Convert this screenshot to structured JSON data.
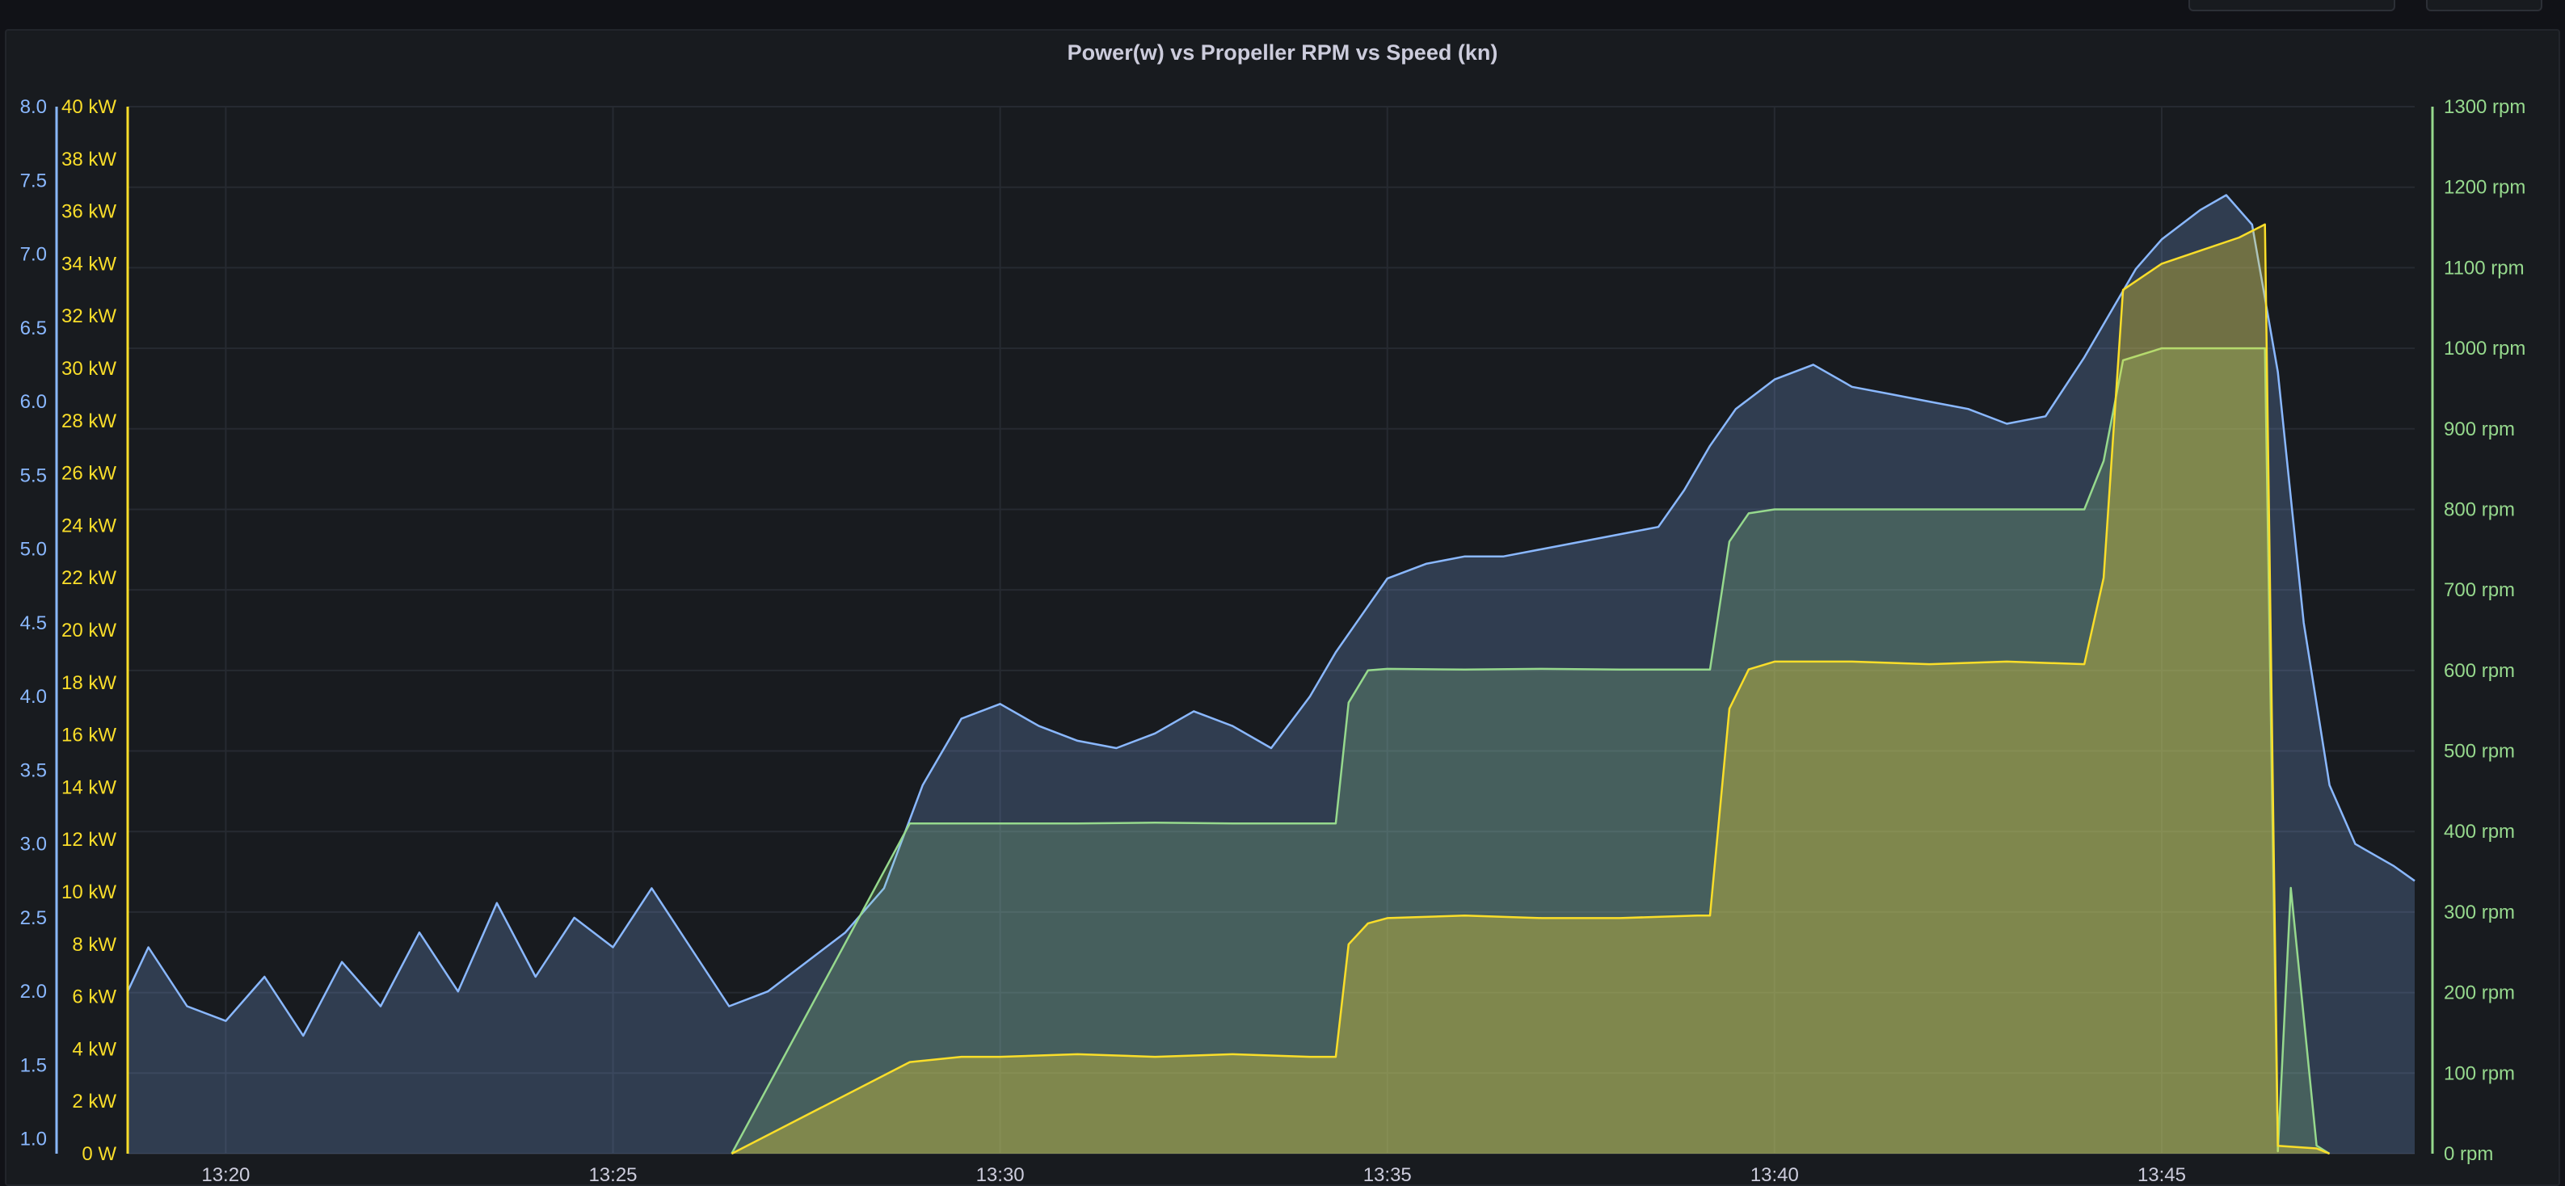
{
  "panel": {
    "title": "Power(w) vs Propeller RPM vs Speed (kn)"
  },
  "colors": {
    "speed": "#8ab8ff",
    "power": "#fade2a",
    "rpm": "#96d98d",
    "grid": "#262a31",
    "text": "#ccccdc"
  },
  "chart_data": {
    "type": "area",
    "title": "Power(w) vs Propeller RPM vs Speed (kn)",
    "x_unit": "time (HH:MM)",
    "x_ticks": [
      "13:20",
      "13:25",
      "13:30",
      "13:35",
      "13:40",
      "13:45"
    ],
    "xlim": [
      "13:18:44",
      "13:48:16"
    ],
    "axes": {
      "speed": {
        "side": "left-outer",
        "ylim": [
          0.9,
          8.0
        ],
        "ticks": [
          "1.0",
          "1.5",
          "2.0",
          "2.5",
          "3.0",
          "3.5",
          "4.0",
          "4.5",
          "5.0",
          "5.5",
          "6.0",
          "6.5",
          "7.0",
          "7.5",
          "8.0"
        ]
      },
      "power": {
        "side": "left-inner",
        "ylim": [
          0,
          40
        ],
        "unit": "kW",
        "ticks": [
          "0 W",
          "2 kW",
          "4 kW",
          "6 kW",
          "8 kW",
          "10 kW",
          "12 kW",
          "14 kW",
          "16 kW",
          "18 kW",
          "20 kW",
          "22 kW",
          "24 kW",
          "26 kW",
          "28 kW",
          "30 kW",
          "32 kW",
          "34 kW",
          "36 kW",
          "38 kW",
          "40 kW"
        ]
      },
      "rpm": {
        "side": "right",
        "ylim": [
          0,
          1300
        ],
        "unit": "rpm",
        "ticks": [
          "0 rpm",
          "100 rpm",
          "200 rpm",
          "300 rpm",
          "400 rpm",
          "500 rpm",
          "600 rpm",
          "700 rpm",
          "800 rpm",
          "900 rpm",
          "1000 rpm",
          "1100 rpm",
          "1200 rpm",
          "1300 rpm"
        ]
      }
    },
    "series": [
      {
        "axis": "speed",
        "x": [
          "13:18:44",
          "13:19:00",
          "13:19:30",
          "13:20:00",
          "13:20:30",
          "13:21:00",
          "13:21:30",
          "13:22:00",
          "13:22:30",
          "13:23:00",
          "13:23:30",
          "13:24:00",
          "13:24:30",
          "13:25:00",
          "13:25:30",
          "13:26:00",
          "13:26:30",
          "13:27:00",
          "13:27:30",
          "13:28:00",
          "13:28:30",
          "13:29:00",
          "13:29:30",
          "13:30:00",
          "13:30:30",
          "13:31:00",
          "13:31:30",
          "13:32:00",
          "13:32:30",
          "13:33:00",
          "13:33:30",
          "13:34:00",
          "13:34:20",
          "13:34:40",
          "13:35:00",
          "13:35:30",
          "13:36:00",
          "13:36:30",
          "13:37:00",
          "13:37:30",
          "13:38:00",
          "13:38:30",
          "13:38:50",
          "13:39:10",
          "13:39:30",
          "13:40:00",
          "13:40:30",
          "13:41:00",
          "13:41:30",
          "13:42:00",
          "13:42:30",
          "13:43:00",
          "13:43:30",
          "13:44:00",
          "13:44:20",
          "13:44:40",
          "13:45:00",
          "13:45:30",
          "13:45:50",
          "13:46:10",
          "13:46:30",
          "13:46:50",
          "13:47:10",
          "13:47:30",
          "13:48:00",
          "13:48:16"
        ],
        "values": [
          2.0,
          2.3,
          1.9,
          1.8,
          2.1,
          1.7,
          2.2,
          1.9,
          2.4,
          2.0,
          2.6,
          2.1,
          2.5,
          2.3,
          2.7,
          2.3,
          1.9,
          2.0,
          2.2,
          2.4,
          2.7,
          3.4,
          3.85,
          3.95,
          3.8,
          3.7,
          3.65,
          3.75,
          3.9,
          3.8,
          3.65,
          4.0,
          4.3,
          4.55,
          4.8,
          4.9,
          4.95,
          4.95,
          5.0,
          5.05,
          5.1,
          5.15,
          5.4,
          5.7,
          5.95,
          6.15,
          6.25,
          6.1,
          6.05,
          6.0,
          5.95,
          5.85,
          5.9,
          6.3,
          6.6,
          6.9,
          7.1,
          7.3,
          7.4,
          7.2,
          6.2,
          4.5,
          3.4,
          3.0,
          2.85,
          2.75
        ]
      },
      {
        "axis": "rpm",
        "x": [
          "13:26:32",
          "13:28:50",
          "13:29:30",
          "13:30:00",
          "13:31:00",
          "13:32:00",
          "13:33:00",
          "13:34:00",
          "13:34:20",
          "13:34:30",
          "13:34:45",
          "13:35:00",
          "13:36:00",
          "13:37:00",
          "13:38:00",
          "13:39:00",
          "13:39:10",
          "13:39:25",
          "13:39:40",
          "13:40:00",
          "13:41:00",
          "13:42:00",
          "13:43:00",
          "13:44:00",
          "13:44:15",
          "13:44:30",
          "13:45:00",
          "13:45:30",
          "13:46:00",
          "13:46:20",
          "13:46:30",
          "13:46:40",
          "13:47:00",
          "13:47:10"
        ],
        "values": [
          0,
          410,
          410,
          410,
          410,
          411,
          410,
          410,
          410,
          560,
          600,
          602,
          601,
          602,
          601,
          601,
          601,
          760,
          795,
          800,
          800,
          800,
          800,
          800,
          860,
          985,
          1000,
          1000,
          1000,
          1000,
          3,
          330,
          10,
          0
        ]
      },
      {
        "axis": "power",
        "x": [
          "13:26:32",
          "13:28:50",
          "13:29:30",
          "13:30:00",
          "13:31:00",
          "13:32:00",
          "13:33:00",
          "13:34:00",
          "13:34:20",
          "13:34:30",
          "13:34:45",
          "13:35:00",
          "13:36:00",
          "13:37:00",
          "13:38:00",
          "13:39:00",
          "13:39:10",
          "13:39:25",
          "13:39:40",
          "13:40:00",
          "13:41:00",
          "13:42:00",
          "13:43:00",
          "13:44:00",
          "13:44:15",
          "13:44:30",
          "13:45:00",
          "13:45:30",
          "13:46:00",
          "13:46:20",
          "13:46:30",
          "13:47:00",
          "13:47:10"
        ],
        "values": [
          0,
          3.5,
          3.7,
          3.7,
          3.8,
          3.7,
          3.8,
          3.7,
          3.7,
          8.0,
          8.8,
          9.0,
          9.1,
          9.0,
          9.0,
          9.1,
          9.1,
          17.0,
          18.5,
          18.8,
          18.8,
          18.7,
          18.8,
          18.7,
          22.0,
          33.0,
          34.0,
          34.5,
          35.0,
          35.5,
          0.3,
          0.2,
          0
        ]
      }
    ]
  }
}
